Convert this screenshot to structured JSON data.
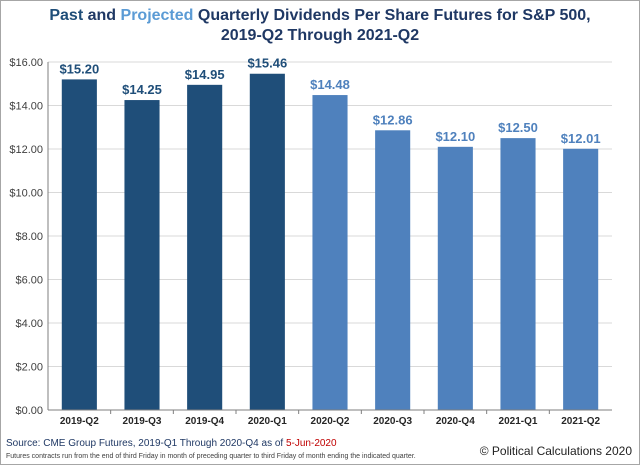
{
  "title": {
    "past_word": "Past",
    "and_word": "and",
    "projected_word": "Projected",
    "line1_rest": "Quarterly Dividends Per Share Futures for S&P 500,",
    "line2": "2019-Q2 Through 2021-Q2"
  },
  "colors": {
    "past": "#1f4e79",
    "projected": "#4f81bd",
    "title": "#1f3864",
    "grid": "#d9d9d9"
  },
  "chart_data": {
    "type": "bar",
    "categories": [
      "2019-Q2",
      "2019-Q3",
      "2019-Q4",
      "2020-Q1",
      "2020-Q2",
      "2020-Q3",
      "2020-Q4",
      "2021-Q1",
      "2021-Q2"
    ],
    "values": [
      15.2,
      14.25,
      14.95,
      15.46,
      14.48,
      12.86,
      12.1,
      12.5,
      12.01
    ],
    "value_labels": [
      "$15.20",
      "$14.25",
      "$14.95",
      "$15.46",
      "$14.48",
      "$12.86",
      "$12.10",
      "$12.50",
      "$12.01"
    ],
    "kind": [
      "past",
      "past",
      "past",
      "past",
      "projected",
      "projected",
      "projected",
      "projected",
      "projected"
    ],
    "ylim": [
      0,
      16
    ],
    "yticks": [
      0,
      2,
      4,
      6,
      8,
      10,
      12,
      14,
      16
    ],
    "ytick_labels": [
      "$0.00",
      "$2.00",
      "$4.00",
      "$6.00",
      "$8.00",
      "$10.00",
      "$12.00",
      "$14.00",
      "$16.00"
    ],
    "grid": true,
    "title": "Past and Projected Quarterly Dividends Per Share Futures for S&P 500, 2019-Q2 Through 2021-Q2",
    "xlabel": "",
    "ylabel": ""
  },
  "footer": {
    "source_label": "Source:  CME Group Futures, 2019-Q1 Through 2020-Q4 as of",
    "source_date": "5-Jun-2020",
    "footnote": "Futures contracts run from the end of third Friday in month of preceding quarter to third Friday of month ending the indicated quarter.",
    "copyright": "© Political Calculations 2020"
  }
}
